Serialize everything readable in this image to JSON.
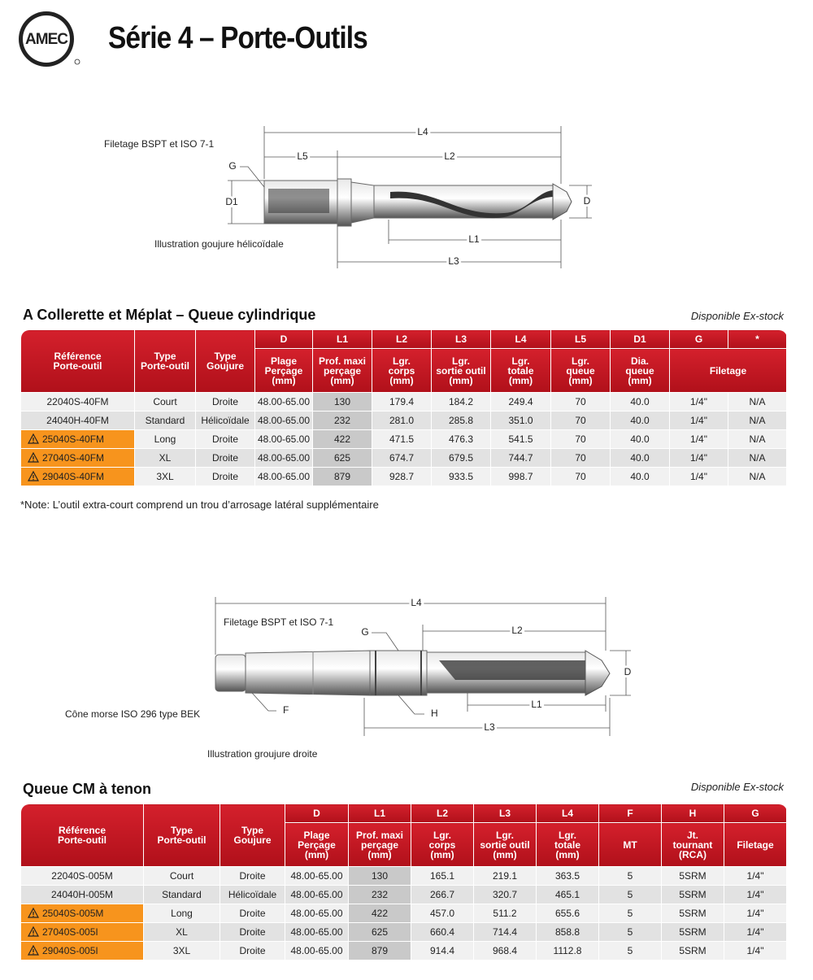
{
  "header": {
    "logo": "AMEC",
    "title": "Série 4 – Porte-Outils"
  },
  "diagram1": {
    "thread_label": "Filetage BSPT et ISO 7-1",
    "caption": "Illustration goujure hélicoïdale",
    "labels": {
      "G": "G",
      "D1": "D1",
      "L4": "L4",
      "L5": "L5",
      "L2": "L2",
      "D": "D",
      "L1": "L1",
      "L3": "L3"
    }
  },
  "table1": {
    "title": "A Collerette et Méplat – Queue cylindrique",
    "availability": "Disponible Ex-stock",
    "header_main": [
      "Référence\nPorte-outil",
      "Type\nPorte-outil",
      "Type\nGoujure"
    ],
    "header_codes": [
      "D",
      "L1",
      "L2",
      "L3",
      "L4",
      "L5",
      "D1",
      "G",
      "*"
    ],
    "header_desc": [
      "Plage\nPerçage\n(mm)",
      "Prof. maxi\nperçage\n(mm)",
      "Lgr.\ncorps\n(mm)",
      "Lgr.\nsortie outil\n(mm)",
      "Lgr.\ntotale\n(mm)",
      "Lgr.\nqueue\n(mm)",
      "Dia.\nqueue\n(mm)",
      "Filetage"
    ],
    "rows": [
      [
        "22040S-40FM",
        "Court",
        "Droite",
        "48.00-65.00",
        "130",
        "179.4",
        "184.2",
        "249.4",
        "70",
        "40.0",
        "1/4\"",
        "N/A"
      ],
      [
        "24040H-40FM",
        "Standard",
        "Hélicoïdale",
        "48.00-65.00",
        "232",
        "281.0",
        "285.8",
        "351.0",
        "70",
        "40.0",
        "1/4\"",
        "N/A"
      ],
      [
        "25040S-40FM",
        "Long",
        "Droite",
        "48.00-65.00",
        "422",
        "471.5",
        "476.3",
        "541.5",
        "70",
        "40.0",
        "1/4\"",
        "N/A"
      ],
      [
        "27040S-40FM",
        "XL",
        "Droite",
        "48.00-65.00",
        "625",
        "674.7",
        "679.5",
        "744.7",
        "70",
        "40.0",
        "1/4\"",
        "N/A"
      ],
      [
        "29040S-40FM",
        "3XL",
        "Droite",
        "48.00-65.00",
        "879",
        "928.7",
        "933.5",
        "998.7",
        "70",
        "40.0",
        "1/4\"",
        "N/A"
      ]
    ],
    "highlighted_rows": [
      2,
      3,
      4
    ],
    "note": "*Note: L’outil extra-court comprend un trou d’arrosage latéral supplémentaire"
  },
  "diagram2": {
    "thread_label": "Filetage BSPT et ISO 7-1",
    "taper_label": "Cône morse ISO 296 type BEK",
    "caption": "Illustration groujure droite",
    "labels": {
      "L4": "L4",
      "G": "G",
      "L2": "L2",
      "D": "D",
      "L1": "L1",
      "F": "F",
      "H": "H",
      "L3": "L3"
    }
  },
  "table2": {
    "title": "Queue CM à tenon",
    "availability": "Disponible Ex-stock",
    "header_main": [
      "Référence\nPorte-outil",
      "Type\nPorte-outil",
      "Type\nGoujure"
    ],
    "header_codes": [
      "D",
      "L1",
      "L2",
      "L3",
      "L4",
      "F",
      "H",
      "G"
    ],
    "header_desc": [
      "Plage\nPerçage\n(mm)",
      "Prof. maxi\nperçage\n(mm)",
      "Lgr.\ncorps\n(mm)",
      "Lgr.\nsortie outil\n(mm)",
      "Lgr.\ntotale\n(mm)",
      "MT",
      "Jt.\ntournant\n(RCA)",
      "Filetage"
    ],
    "rows": [
      [
        "22040S-005M",
        "Court",
        "Droite",
        "48.00-65.00",
        "130",
        "165.1",
        "219.1",
        "363.5",
        "5",
        "5SRM",
        "1/4\""
      ],
      [
        "24040H-005M",
        "Standard",
        "Hélicoïdale",
        "48.00-65.00",
        "232",
        "266.7",
        "320.7",
        "465.1",
        "5",
        "5SRM",
        "1/4\""
      ],
      [
        "25040S-005M",
        "Long",
        "Droite",
        "48.00-65.00",
        "422",
        "457.0",
        "511.2",
        "655.6",
        "5",
        "5SRM",
        "1/4\""
      ],
      [
        "27040S-005I",
        "XL",
        "Droite",
        "48.00-65.00",
        "625",
        "660.4",
        "714.4",
        "858.8",
        "5",
        "5SRM",
        "1/4\""
      ],
      [
        "29040S-005I",
        "3XL",
        "Droite",
        "48.00-65.00",
        "879",
        "914.4",
        "968.4",
        "1112.8",
        "5",
        "5SRM",
        "1/4\""
      ]
    ],
    "highlighted_rows": [
      2,
      3,
      4
    ]
  }
}
